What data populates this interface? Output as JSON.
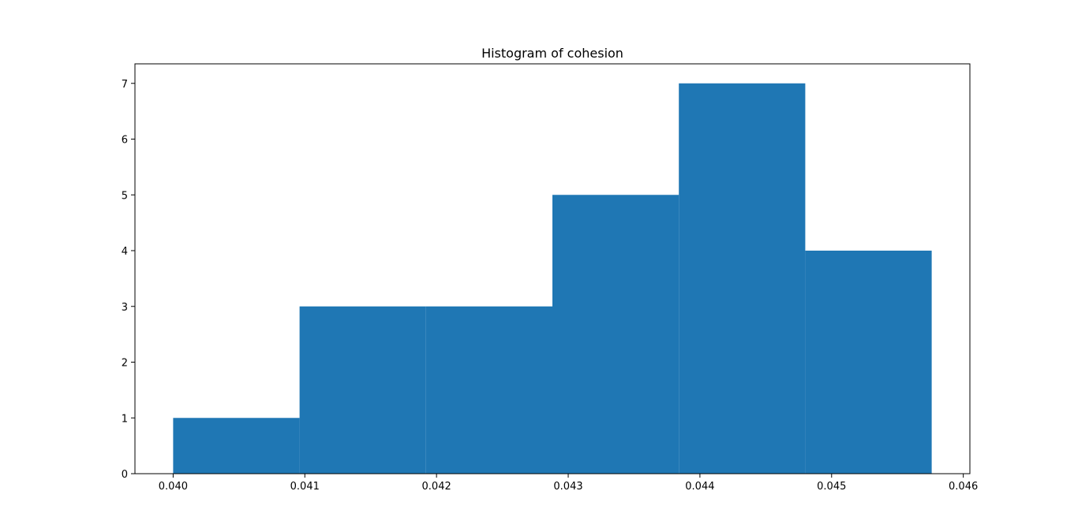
{
  "chart_data": {
    "type": "bar",
    "subtype": "histogram",
    "title": "Histogram of cohesion",
    "xlabel": "",
    "ylabel": "",
    "bins": [
      {
        "start": 0.04,
        "end": 0.04096,
        "count": 1
      },
      {
        "start": 0.04096,
        "end": 0.04192,
        "count": 3
      },
      {
        "start": 0.04192,
        "end": 0.04288,
        "count": 3
      },
      {
        "start": 0.04288,
        "end": 0.04384,
        "count": 5
      },
      {
        "start": 0.04384,
        "end": 0.0448,
        "count": 7
      },
      {
        "start": 0.0448,
        "end": 0.04576,
        "count": 4
      }
    ],
    "xlim": [
      0.03971,
      0.04605
    ],
    "ylim": [
      0,
      7.35
    ],
    "xticks": [
      0.04,
      0.041,
      0.042,
      0.043,
      0.044,
      0.045,
      0.046
    ],
    "xtick_labels": [
      "0.040",
      "0.041",
      "0.042",
      "0.043",
      "0.044",
      "0.045",
      "0.046"
    ],
    "yticks": [
      0,
      1,
      2,
      3,
      4,
      5,
      6,
      7
    ],
    "ytick_labels": [
      "0",
      "1",
      "2",
      "3",
      "4",
      "5",
      "6",
      "7"
    ],
    "grid": false,
    "legend": false,
    "bar_color": "#1f77b4"
  }
}
